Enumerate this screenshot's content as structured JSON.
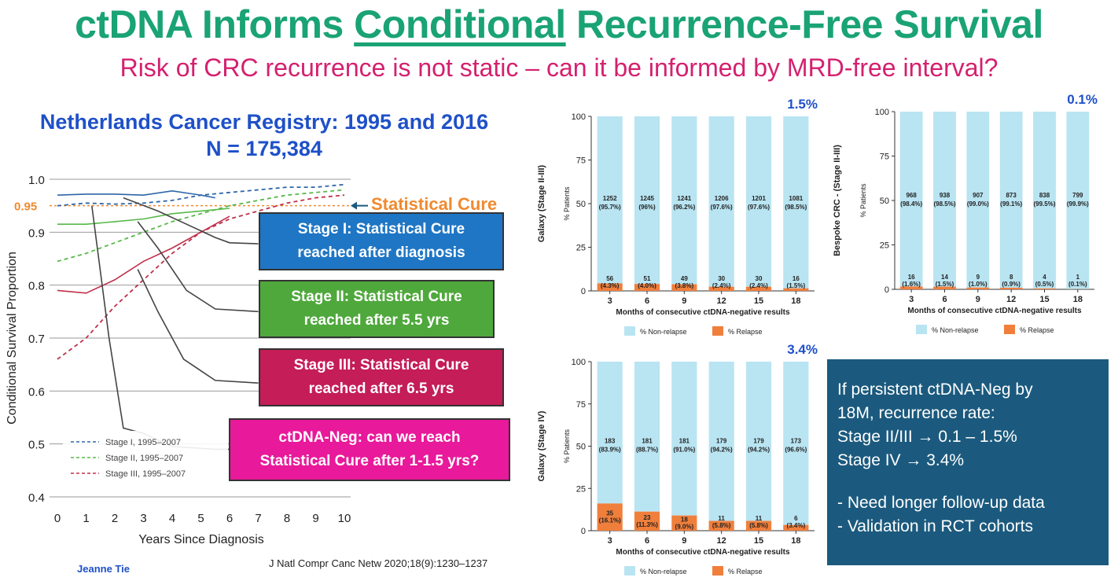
{
  "header": {
    "title_pre": "ctDNA Informs ",
    "title_underline": "Conditional",
    "title_post": " Recurrence-Free Survival",
    "subtitle": "Risk of CRC recurrence is not static – can it be informed by MRD-free interval?"
  },
  "registry": {
    "line1": "Netherlands Cancer Registry: 1995 and 2016",
    "line2": "N = 175,384"
  },
  "colors": {
    "title": "#1aa374",
    "subtitle": "#d4206f",
    "registry": "#1e50c8",
    "cure": "#f08a2e",
    "non_relapse": "#b9e4f2",
    "relapse": "#f07f3c",
    "summary_bg": "#1b5a7e"
  },
  "survival_chart": {
    "type": "line",
    "xlabel": "Years Since Diagnosis",
    "ylabel": "Conditional Survival Proportion",
    "xlim": [
      0,
      10
    ],
    "ylim": [
      0.4,
      1.0
    ],
    "x_ticks": [
      "0",
      "1",
      "2",
      "3",
      "4",
      "5",
      "6",
      "7",
      "8",
      "9",
      "10"
    ],
    "y_ticks": [
      "0.4",
      "0.5",
      "0.6",
      "0.7",
      "0.8",
      "0.9",
      "1.0"
    ],
    "cure_tick": "0.95",
    "cure_label": "Statistical Cure",
    "legend": [
      "Stage I, 1995–2007",
      "Stage II, 1995–2007",
      "Stage III, 1995–2007"
    ],
    "series": [
      {
        "name": "Stage I, 1995–2007",
        "style": "dashed",
        "color": "#2e66a8",
        "x": [
          0,
          1,
          2,
          3,
          4,
          5,
          6,
          7,
          8,
          9,
          10
        ],
        "y": [
          0.95,
          0.955,
          0.953,
          0.955,
          0.96,
          0.97,
          0.975,
          0.98,
          0.985,
          0.985,
          0.99
        ]
      },
      {
        "name": "Stage II, 1995–2007",
        "style": "dashed",
        "color": "#58b84a",
        "x": [
          0,
          1,
          2,
          3,
          4,
          5,
          6,
          7,
          8,
          9,
          10
        ],
        "y": [
          0.845,
          0.86,
          0.88,
          0.9,
          0.92,
          0.935,
          0.95,
          0.96,
          0.97,
          0.975,
          0.98
        ]
      },
      {
        "name": "Stage III, 1995–2007",
        "style": "dashed",
        "color": "#c0304a",
        "x": [
          0,
          1,
          2,
          3,
          4,
          5,
          6,
          7,
          8,
          9,
          10
        ],
        "y": [
          0.66,
          0.7,
          0.76,
          0.81,
          0.86,
          0.9,
          0.925,
          0.94,
          0.955,
          0.965,
          0.97
        ]
      },
      {
        "name": "",
        "style": "solid",
        "color": "#2e66a8",
        "x": [
          0,
          1,
          2,
          3,
          4,
          5,
          5.5
        ],
        "y": [
          0.97,
          0.972,
          0.972,
          0.97,
          0.978,
          0.97,
          0.965
        ]
      },
      {
        "name": "",
        "style": "solid",
        "color": "#58b84a",
        "x": [
          0,
          1,
          2,
          3,
          4,
          5,
          6
        ],
        "y": [
          0.915,
          0.915,
          0.92,
          0.925,
          0.935,
          0.94,
          0.945
        ]
      },
      {
        "name": "",
        "style": "solid",
        "color": "#c0304a",
        "x": [
          0,
          1,
          2,
          3,
          4,
          5,
          6
        ],
        "y": [
          0.79,
          0.785,
          0.81,
          0.845,
          0.87,
          0.9,
          0.93
        ]
      },
      {
        "name": "",
        "style": "solid",
        "color": "#444444",
        "x": [
          2.3,
          3.5,
          4.5,
          5.5,
          6,
          7
        ],
        "y": [
          0.965,
          0.94,
          0.915,
          0.89,
          0.88,
          0.878
        ]
      },
      {
        "name": "",
        "style": "solid",
        "color": "#444444",
        "x": [
          2.8,
          3.5,
          4.5,
          5.5,
          7
        ],
        "y": [
          0.92,
          0.87,
          0.79,
          0.755,
          0.75
        ]
      },
      {
        "name": "",
        "style": "solid",
        "color": "#444444",
        "x": [
          2.8,
          3.5,
          4.4,
          5.5,
          7
        ],
        "y": [
          0.83,
          0.75,
          0.66,
          0.62,
          0.615
        ]
      },
      {
        "name": "",
        "style": "solid",
        "color": "#444444",
        "x": [
          1.2,
          1.8,
          2.3,
          3,
          4,
          5.5,
          6.5
        ],
        "y": [
          0.95,
          0.7,
          0.53,
          0.52,
          0.495,
          0.49,
          0.49
        ]
      }
    ]
  },
  "stage_boxes": [
    {
      "line1": "Stage I: Statistical Cure",
      "line2": "reached after diagnosis",
      "color": "#1f76c4"
    },
    {
      "line1": "Stage II: Statistical Cure",
      "line2": "reached after 5.5 yrs",
      "color": "#4fa83c"
    },
    {
      "line1": "Stage III: Statistical Cure",
      "line2": "reached after 6.5 yrs",
      "color": "#c41d57"
    },
    {
      "line1": "ctDNA-Neg: can we reach",
      "line2": "Statistical Cure after 1-1.5 yrs?",
      "color": "#e8199a"
    }
  ],
  "bar_charts": [
    {
      "type": "bar",
      "stacked": true,
      "ylabel": "Galaxy (Stage II-III)",
      "y_axis_label": "% Patients",
      "xlabel": "Months of consecutive ctDNA-negative results",
      "rate": "1.5%",
      "categories": [
        "3",
        "6",
        "9",
        "12",
        "15",
        "18"
      ],
      "y_ticks": [
        "0",
        "25",
        "50",
        "75",
        "100"
      ],
      "ylim": [
        0,
        100
      ],
      "legend": [
        "% Non-relapse",
        "% Relapse"
      ],
      "non_relapse": {
        "n": [
          "1252",
          "1245",
          "1241",
          "1206",
          "1201",
          "1081"
        ],
        "pct": [
          "(95.7%)",
          "(96%)",
          "(96.2%)",
          "(97.6%)",
          "(97.6%)",
          "(98.5%)"
        ]
      },
      "relapse": {
        "n": [
          "56",
          "51",
          "49",
          "30",
          "30",
          "16"
        ],
        "pct": [
          "(4.3%)",
          "(4.0%)",
          "(3.8%)",
          "(2.4%)",
          "(2.4%)",
          "(1.5%)"
        ]
      },
      "relapse_values": [
        4.3,
        4.0,
        3.8,
        2.4,
        2.4,
        1.5
      ]
    },
    {
      "type": "bar",
      "stacked": true,
      "ylabel": "Bespoke CRC - (Stage II-III)",
      "y_axis_label": "% Patients",
      "xlabel": "Months of consecutive ctDNA-negative results",
      "rate": "0.1%",
      "categories": [
        "3",
        "6",
        "9",
        "12",
        "15",
        "18"
      ],
      "y_ticks": [
        "0",
        "25",
        "50",
        "75",
        "100"
      ],
      "ylim": [
        0,
        100
      ],
      "legend": [
        "% Non-relapse",
        "% Relapse"
      ],
      "non_relapse": {
        "n": [
          "968",
          "938",
          "907",
          "873",
          "838",
          "799"
        ],
        "pct": [
          "(98.4%)",
          "(98.5%)",
          "(99.0%)",
          "(99.1%)",
          "(99.5%)",
          "(99.9%)"
        ]
      },
      "relapse": {
        "n": [
          "16",
          "14",
          "9",
          "8",
          "4",
          "1"
        ],
        "pct": [
          "(1.6%)",
          "(1.5%)",
          "(1.0%)",
          "(0.9%)",
          "(0.5%)",
          "(0.1%)"
        ]
      },
      "relapse_values": [
        1.6,
        1.5,
        1.0,
        0.9,
        0.5,
        0.1
      ]
    },
    {
      "type": "bar",
      "stacked": true,
      "ylabel": "Galaxy (Stage IV)",
      "y_axis_label": "% Patients",
      "xlabel": "Months of consecutive ctDNA-negative results",
      "rate": "3.4%",
      "categories": [
        "3",
        "6",
        "9",
        "12",
        "15",
        "18"
      ],
      "y_ticks": [
        "0",
        "25",
        "50",
        "75",
        "100"
      ],
      "ylim": [
        0,
        100
      ],
      "legend": [
        "% Non-relapse",
        "% Relapse"
      ],
      "non_relapse": {
        "n": [
          "183",
          "181",
          "181",
          "179",
          "179",
          "173"
        ],
        "pct": [
          "(83.9%)",
          "(88.7%)",
          "(91.0%)",
          "(94.2%)",
          "(94.2%)",
          "(96.6%)"
        ]
      },
      "relapse": {
        "n": [
          "35",
          "23",
          "18",
          "11",
          "11",
          "6"
        ],
        "pct": [
          "(16.1%)",
          "(11.3%)",
          "(9.0%)",
          "(5.8%)",
          "(5.8%)",
          "(3.4%)"
        ]
      },
      "relapse_values": [
        16.1,
        11.3,
        9.0,
        5.8,
        5.8,
        3.4
      ]
    }
  ],
  "summary": {
    "lines": [
      "If persistent ctDNA-Neg by",
      "18M, recurrence rate:",
      "Stage II/III → 0.1 – 1.5%",
      "Stage IV → 3.4%"
    ],
    "bullets": [
      "- Need longer follow-up data",
      "- Validation in RCT cohorts"
    ]
  },
  "footer": {
    "credit": "Jeanne Tie",
    "reference": "J Natl Compr Canc Netw 2020;18(9):1230–1237"
  }
}
